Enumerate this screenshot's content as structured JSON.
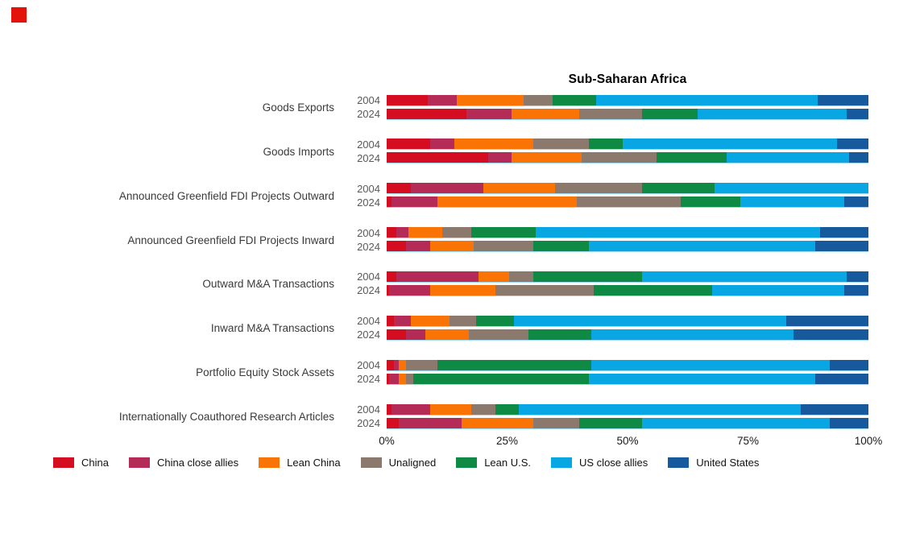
{
  "brand_color": "#e3120b",
  "chart_data": {
    "type": "bar",
    "stacked": true,
    "orientation": "horizontal",
    "title": "Sub-Saharan Africa",
    "xlabel": "",
    "ylabel": "",
    "xlim": [
      0,
      100
    ],
    "grid": false,
    "legend_position": "bottom",
    "series": [
      {
        "name": "China",
        "color": "#d40d20"
      },
      {
        "name": "China close allies",
        "color": "#b32b56"
      },
      {
        "name": "Lean China",
        "color": "#fa7305"
      },
      {
        "name": "Unaligned",
        "color": "#8a796c"
      },
      {
        "name": "Lean U.S.",
        "color": "#0f8a44"
      },
      {
        "name": "US close allies",
        "color": "#09a6e4"
      },
      {
        "name": "United States",
        "color": "#17599d"
      }
    ],
    "xticks": [
      {
        "value": 0,
        "label": "0%"
      },
      {
        "value": 25,
        "label": "25%"
      },
      {
        "value": 50,
        "label": "50%"
      },
      {
        "value": 75,
        "label": "75%"
      },
      {
        "value": 100,
        "label": "100%"
      }
    ],
    "groups": [
      {
        "category": "Goods Exports",
        "rows": [
          {
            "year": "2004",
            "values": [
              8.5,
              6,
              14,
              6,
              9,
              46,
              10.5
            ]
          },
          {
            "year": "2024",
            "values": [
              16.5,
              9.5,
              14,
              13,
              11.5,
              31,
              4.5
            ]
          }
        ]
      },
      {
        "category": "Goods Imports",
        "rows": [
          {
            "year": "2004",
            "values": [
              9,
              5,
              16.5,
              11.5,
              7,
              44.5,
              6.5
            ]
          },
          {
            "year": "2024",
            "values": [
              21,
              5,
              14.5,
              15.5,
              14.5,
              25.5,
              4
            ]
          }
        ]
      },
      {
        "category": "Announced Greenfield FDI Projects Outward",
        "rows": [
          {
            "year": "2004",
            "values": [
              5,
              15,
              15,
              18,
              15,
              32,
              0
            ]
          },
          {
            "year": "2024",
            "values": [
              1,
              9.5,
              29,
              21.5,
              12.5,
              21.5,
              5
            ]
          }
        ]
      },
      {
        "category": "Announced Greenfield FDI Projects Inward",
        "rows": [
          {
            "year": "2004",
            "values": [
              2,
              2.5,
              7,
              6,
              13.5,
              59,
              10
            ]
          },
          {
            "year": "2024",
            "values": [
              4,
              5,
              9,
              12.5,
              11.5,
              47,
              11
            ]
          }
        ]
      },
      {
        "category": "Outward M&A Transactions",
        "rows": [
          {
            "year": "2004",
            "values": [
              2,
              17,
              6.5,
              5,
              22.5,
              42.5,
              4.5
            ]
          },
          {
            "year": "2024",
            "values": [
              0.5,
              8.5,
              13.5,
              20.5,
              24.5,
              27.5,
              5
            ]
          }
        ]
      },
      {
        "category": "Inward M&A Transactions",
        "rows": [
          {
            "year": "2004",
            "values": [
              1.5,
              3.5,
              8,
              5.5,
              8,
              56.5,
              17
            ]
          },
          {
            "year": "2024",
            "values": [
              4,
              4,
              9,
              12.5,
              13,
              42,
              15.5
            ]
          }
        ]
      },
      {
        "category": "Portfolio Equity Stock Assets",
        "rows": [
          {
            "year": "2004",
            "values": [
              1.5,
              1,
              1.5,
              6.5,
              32,
              49.5,
              8
            ]
          },
          {
            "year": "2024",
            "values": [
              0.5,
              2,
              1.5,
              1.5,
              36.5,
              47,
              11
            ]
          }
        ]
      },
      {
        "category": "Internationally Coauthored Research Articles",
        "rows": [
          {
            "year": "2004",
            "values": [
              1,
              8,
              8.5,
              5,
              5,
              58.5,
              14
            ]
          },
          {
            "year": "2024",
            "values": [
              2.5,
              13,
              15,
              9.5,
              13,
              39,
              8
            ]
          }
        ]
      }
    ]
  }
}
